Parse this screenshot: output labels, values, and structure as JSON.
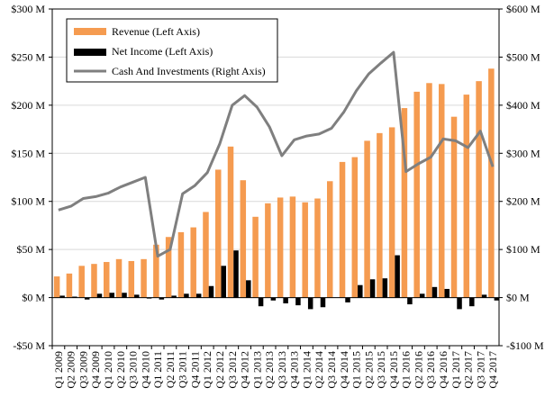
{
  "chart_data": {
    "type": "bar",
    "title": "",
    "xlabel": "",
    "ylabel_left": "",
    "ylabel_right": "",
    "grid": true,
    "legend": "top-left",
    "categories": [
      "Q1 2009",
      "Q2 2009",
      "Q3 2009",
      "Q4 2009",
      "Q1 2010",
      "Q2 2010",
      "Q3 2010",
      "Q4 2010",
      "Q1 2011",
      "Q2 2011",
      "Q3 2011",
      "Q4 2011",
      "Q1 2012",
      "Q2 2012",
      "Q3 2012",
      "Q4 2012",
      "Q1 2013",
      "Q2 2013",
      "Q3 2013",
      "Q4 2013",
      "Q1 2014",
      "Q2 2014",
      "Q3 2014",
      "Q4 2014",
      "Q1 2015",
      "Q2 2015",
      "Q3 2015",
      "Q4 2015",
      "Q1 2016",
      "Q2 2016",
      "Q3 2016",
      "Q4 2016",
      "Q1 2017",
      "Q2 2017",
      "Q3 2017",
      "Q4 2017"
    ],
    "left_axis": {
      "ylim": [
        -50,
        300
      ],
      "ticks": [
        -50,
        0,
        50,
        100,
        150,
        200,
        250,
        300
      ],
      "tick_labels": [
        "-$50 M",
        "$0 M",
        "$50 M",
        "$100 M",
        "$150 M",
        "$200 M",
        "$250 M",
        "$300 M"
      ]
    },
    "right_axis": {
      "ylim": [
        -100,
        600
      ],
      "ticks": [
        -100,
        0,
        100,
        200,
        300,
        400,
        500,
        600
      ],
      "tick_labels": [
        "-$100 M",
        "$0 M",
        "$100 M",
        "$200 M",
        "$300 M",
        "$400 M",
        "$500 M",
        "$600 M"
      ]
    },
    "series": [
      {
        "name": "Revenue (Left Axis)",
        "kind": "bar",
        "axis": "left",
        "color": "#F59B50",
        "values": [
          22,
          25,
          33,
          35,
          37,
          40,
          38,
          40,
          55,
          63,
          68,
          73,
          89,
          133,
          157,
          122,
          84,
          98,
          104,
          105,
          99,
          103,
          121,
          141,
          146,
          163,
          171,
          177,
          197,
          214,
          223,
          222,
          188,
          211,
          225,
          238
        ]
      },
      {
        "name": "Net Income (Left Axis)",
        "kind": "bar",
        "axis": "left",
        "color": "#000000",
        "values": [
          2,
          1,
          -2,
          4,
          5,
          5,
          3,
          -1,
          -2,
          2,
          4,
          4,
          12,
          33,
          49,
          18,
          -9,
          -3,
          -6,
          -8,
          -12,
          -10,
          0,
          -5,
          13,
          19,
          20,
          44,
          -7,
          4,
          11,
          9,
          -12,
          -9,
          3,
          -3
        ]
      },
      {
        "name": "Cash And Investments (Right Axis)",
        "kind": "line",
        "axis": "right",
        "color": "#7F7F7F",
        "values": [
          182,
          190,
          206,
          210,
          217,
          230,
          240,
          250,
          86,
          100,
          216,
          233,
          260,
          320,
          400,
          420,
          396,
          355,
          295,
          328,
          336,
          340,
          352,
          386,
          430,
          465,
          488,
          510,
          262,
          278,
          292,
          330,
          326,
          312,
          346,
          272
        ]
      }
    ]
  }
}
